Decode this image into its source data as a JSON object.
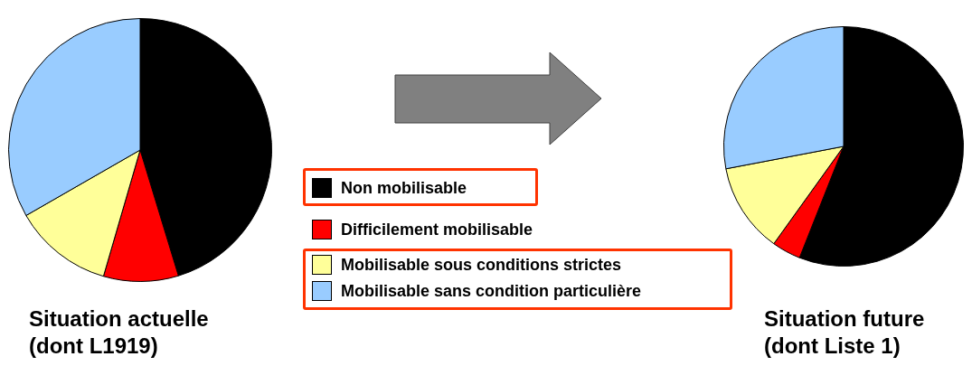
{
  "chart_data": [
    {
      "type": "pie",
      "title": "Situation actuelle\n(dont L1919)",
      "categories": [
        "Non mobilisable",
        "Difficilement mobilisable",
        "Mobilisable sous conditions strictes",
        "Mobilisable sans condition particulière"
      ],
      "values": [
        45.3,
        9.2,
        12.2,
        33.3
      ],
      "colors": [
        "#000000",
        "#ff0000",
        "#ffff99",
        "#99ccff"
      ],
      "legend": "right"
    },
    {
      "type": "pie",
      "title": "Situation future\n(dont Liste 1)",
      "categories": [
        null,
        null,
        null,
        null
      ],
      "values": [
        56.0,
        3.9,
        12.1,
        28.0
      ],
      "colors": [
        "#000000",
        "#ff0000",
        "#ffff99",
        "#99ccff"
      ]
    }
  ]
}
